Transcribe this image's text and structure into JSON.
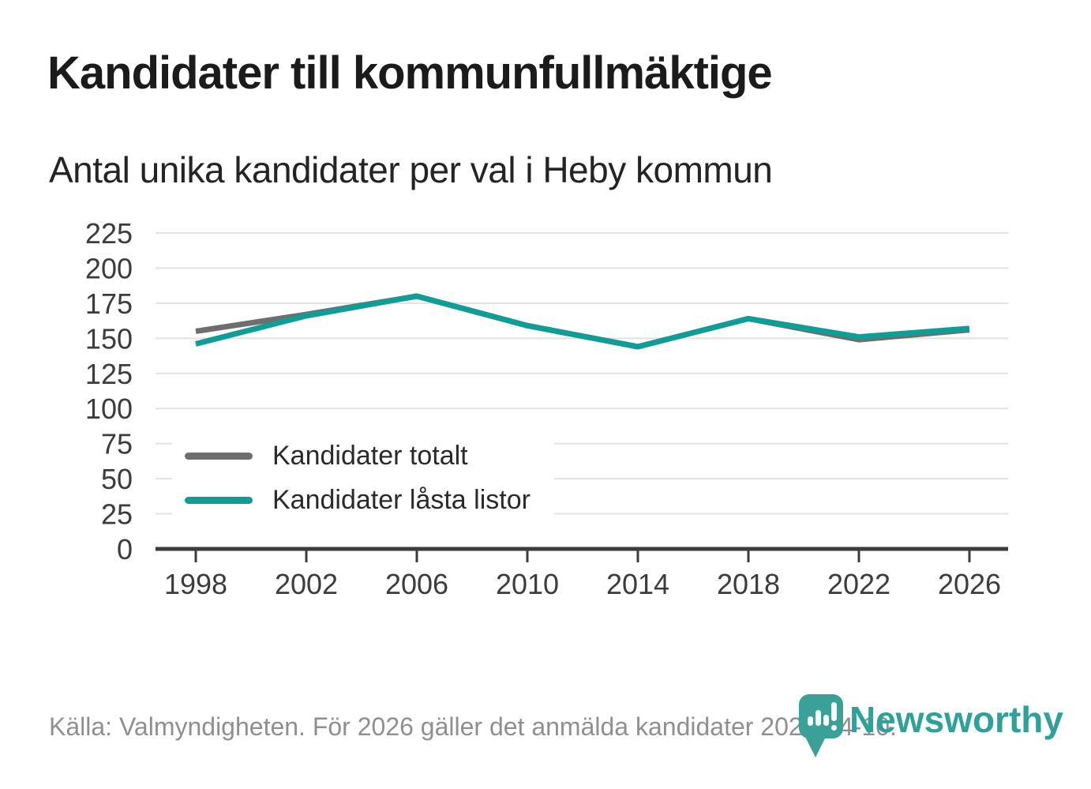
{
  "header": {
    "title": "Kandidater till kommunfullmäktige",
    "subtitle": "Antal unika kandidater per val i Heby kommun"
  },
  "chart_data": {
    "type": "line",
    "x": [
      1998,
      2002,
      2006,
      2010,
      2014,
      2018,
      2022,
      2026
    ],
    "series": [
      {
        "name": "Kandidater totalt",
        "color": "#6e6e6e",
        "values": [
          155,
          167,
          180,
          159,
          144,
          164,
          149,
          156
        ]
      },
      {
        "name": "Kandidater låsta listor",
        "color": "#0f9e95",
        "values": [
          146,
          166,
          180,
          159,
          144,
          164,
          151,
          157
        ]
      }
    ],
    "title": "Kandidater till kommunfullmäktige",
    "subtitle": "Antal unika kandidater per val i Heby kommun",
    "xlabel": "",
    "ylabel": "",
    "ylim": [
      0,
      225
    ],
    "ytick_step": 25,
    "grid": true,
    "grid_color": "#e2e2e2",
    "axis_color": "#3c3c3c",
    "legend_position": "inside-bottom-left"
  },
  "footer": {
    "source": "Källa: Valmyndigheten. För 2026 gäller det anmälda kandidater 2026-04-10.",
    "brand": "Newsworthy"
  }
}
